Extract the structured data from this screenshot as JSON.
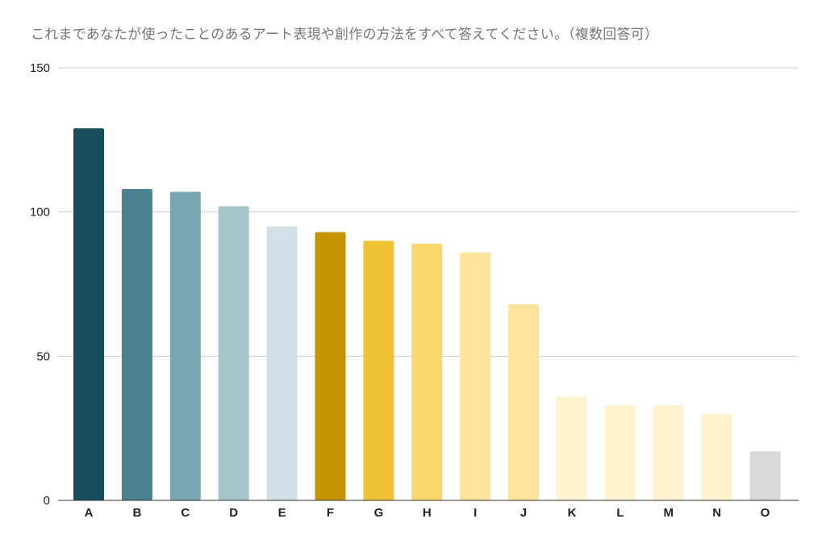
{
  "chart_data": {
    "type": "bar",
    "title": "これまであなたが使ったことのあるアート表現や創作の方法をすべて答えてください。（複数回答可）",
    "xlabel": "",
    "ylabel": "",
    "ylim": [
      0,
      150
    ],
    "yticks": [
      0,
      50,
      100,
      150
    ],
    "grid": true,
    "legend": "none",
    "categories": [
      "A",
      "B",
      "C",
      "D",
      "E",
      "F",
      "G",
      "H",
      "I",
      "J",
      "K",
      "L",
      "M",
      "N",
      "O"
    ],
    "values": [
      129,
      108,
      107,
      102,
      95,
      93,
      90,
      89,
      86,
      68,
      36,
      33,
      33,
      30,
      17
    ],
    "colors": [
      "#164e5b",
      "#4a818d",
      "#78a6b1",
      "#a4c4ca",
      "#d1e1e5",
      "#c39302",
      "#efc233",
      "#fbd76b",
      "#fde39c",
      "#fde39c",
      "#fff3cf",
      "#fff3cf",
      "#fff3cf",
      "#fff3cf",
      "#d9d9d9"
    ]
  }
}
